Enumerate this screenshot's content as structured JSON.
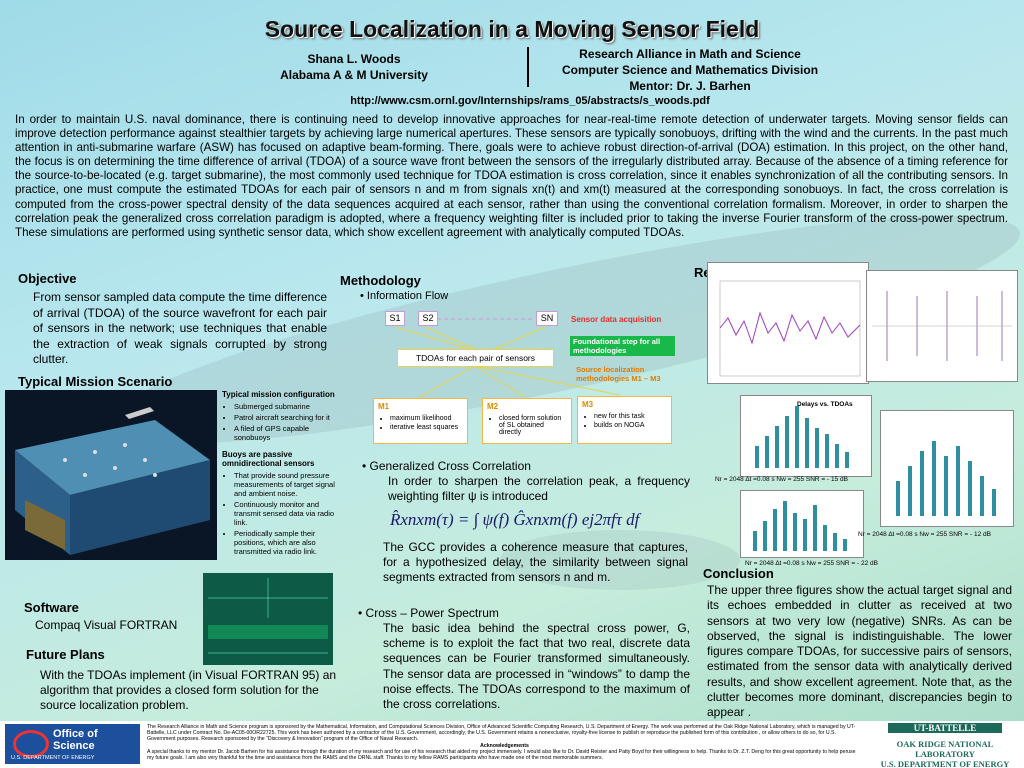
{
  "header": {
    "title": "Source Localization in a Moving Sensor Field",
    "author": "Shana L. Woods",
    "university": "Alabama A & M University",
    "affiliation": [
      "Research Alliance in Math and Science",
      "Computer Science and Mathematics Division",
      "Mentor: Dr. J. Barhen"
    ],
    "url": "http://www.csm.ornl.gov/Internships/rams_05/abstracts/s_woods.pdf"
  },
  "abstract": "In order to maintain U.S. naval dominance, there is continuing need to develop innovative approaches for near-real-time remote detection of underwater targets.  Moving sensor fields can improve detection performance against stealthier targets by achieving large numerical apertures. These sensors are typically sonobuoys, drifting with the wind and the currents.  In the past much attention in anti-submarine warfare (ASW) has focused on adaptive beam-forming. There, goals were to achieve robust direction-of-arrival (DOA) estimation.  In this project, on the other hand, the focus is on determining the time difference of arrival (TDOA) of a source wave front between the sensors of the irregularly distributed array.  Because of the absence of a timing reference for the source-to-be-located (e.g. target submarine), the most commonly used technique for TDOA estimation is cross correlation, since it enables synchronization of all the contributing sensors.  In practice, one must compute the estimated TDOAs for each pair of sensors n and m from signals xn(t) and xm(t) measured at the corresponding sonobuoys. In fact, the cross correlation is computed from the cross-power spectral density of the data sequences acquired at each sensor, rather than using the conventional correlation formalism.  Moreover, in order to sharpen the correlation peak the generalized cross correlation paradigm is adopted, where a frequency weighting filter is included prior to taking the inverse Fourier transform of the cross-power spectrum. These simulations are performed using synthetic sensor data, which show excellent agreement with analytically computed TDOAs.",
  "objective": {
    "heading": "Objective",
    "text": "From sensor sampled data compute the time difference of arrival (TDOA) of the source wavefront for each pair of sensors in the network; use techniques that enable the extraction of weak signals corrupted by strong clutter."
  },
  "mission": {
    "heading": "Typical Mission Scenario",
    "config_heading": "Typical mission configuration",
    "config_items": [
      "Submerged submarine",
      "Patrol aircraft searching for it",
      "A filed of GPS capable sonobuoys"
    ],
    "buoys_heading": "Buoys are passive omnidirectional sensors",
    "buoys_items": [
      "That provide sound pressure measurements of target signal and ambient noise.",
      "Continuously monitor and transmit sensed data via radio link.",
      "Periodically sample their positions, which are also transmitted via radio link."
    ]
  },
  "software": {
    "heading": "Software",
    "text": "Compaq Visual FORTRAN"
  },
  "future_plans": {
    "heading": "Future Plans",
    "text": "With the TDOAs implement (in Visual FORTRAN 95) an algorithm that provides a closed form solution for the source localization problem."
  },
  "methodology": {
    "heading": "Methodology",
    "info_flow": "• Information Flow",
    "diagram": {
      "sensors": [
        "S1",
        "S2",
        "SN"
      ],
      "acquisition": "Sensor data acquisition",
      "foundational": "Foundational step for all methodologies",
      "tdoa": "TDOAs for each pair of sensors",
      "methods_label": "Source localization methodologies  M1 – M3",
      "m1": {
        "title": "M1",
        "items": [
          "maximum likelihood",
          "iterative least squares"
        ]
      },
      "m2": {
        "title": "M2",
        "items": [
          "closed form solution of SL obtained directly"
        ]
      },
      "m3": {
        "title": "M3",
        "items": [
          "new for this task",
          "builds on NOGA"
        ]
      }
    },
    "gcc": {
      "heading": "• Generalized Cross Correlation",
      "intro": "In order to sharpen the correlation peak, a frequency weighting filter ψ is introduced",
      "formula": "R̂xnxm(τ) = ∫ ψ(f) Ĝxnxm(f) ej2πfτ df",
      "text": "The GCC provides a coherence measure that captures, for a hypothesized delay, the similarity between signal segments extracted from sensors n and m."
    },
    "cps": {
      "heading": "• Cross – Power Spectrum",
      "text": "The basic idea behind the spectral cross power, G, scheme is to exploit the fact that two real, discrete data sequences can be Fourier transformed simultaneously.  The sensor data are processed in “windows” to damp the noise effects. The TDOAs correspond to the maximum of the cross correlations."
    }
  },
  "results": {
    "heading": "Results",
    "captions": [
      "Delays  vs. TDOAs",
      "Nr = 2048   ∆t =0.08 s  Nw = 255  SNR = - 15 dB",
      "Nr = 2048   ∆t =0.08 s  Nw = 255  SNR = - 22 dB",
      "Nr = 2048   ∆t =0.08 s  Nw = 255  SNR = - 12 dB"
    ]
  },
  "conclusion": {
    "heading": "Conclusion",
    "text": "The upper three figures show the actual target signal and its echoes embedded in clutter as received at two sensors at two very low (negative) SNRs. As can be observed, the signal is indistinguishable. The lower figures compare TDOAs, for successive pairs of sensors, estimated from the sensor data with analytically derived results, and show excellent agreement. Note that, as the clutter becomes more dominant, discrepancies begin to appear ."
  },
  "footer": {
    "sponsor": "The Research Alliance in Math and Science program is sponsored by the Mathematical, Information, and Computational Sciences Division, Office of Advanced Scientific Computing Research, U.S. Department of Energy.  The work was performed at the Oak Ridge National Laboratory, which is managed by UT-Battelle, LLC under Contract No. De-AC05-00OR22725. This work has been authored by a contractor of the U.S. Government, accordingly, the U.S. Government retains a nonexclusive, royalty-free license to publish or reproduce the published form of this contribution , or allow others to do so, for U.S. Government purposes.  Research sponsored by the “Discovery & Innovation” program of the Office of Naval Research.",
    "ack_heading": "Acknowledgements",
    "ack": "A special thanks to my mentor Dr. Jacob Barhen for his assistance through the duration of my research and for use of his research that aided my project immensely.  I would also like to Dr. David Reister and Patty Boyd for their willingness to help. Thanks to Dr. Z.T. Deng for this great opportunity to help peruse my future goals. I am also very thankful for the time and assistance from the RAMS and the ORNL staff.  Thanks to my fellow RAMS participants who have made one of the most memorable summers.",
    "logo_left": [
      "Office of Science",
      "U.S. DEPARTMENT OF ENERGY"
    ],
    "logo_right": [
      "UT-BATTELLE",
      "OAK RIDGE NATIONAL LABORATORY",
      "U.S. DEPARTMENT OF ENERGY"
    ]
  }
}
